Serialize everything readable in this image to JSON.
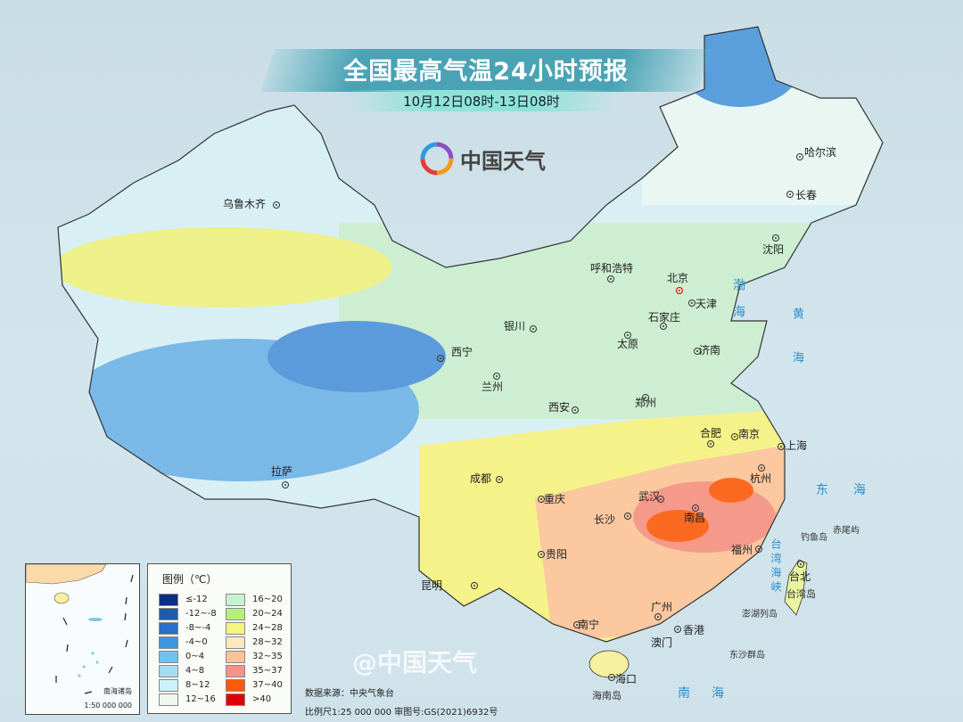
{
  "header": {
    "title": "全国最高气温24小时预报",
    "subtitle": "10月12日08时-13日08时",
    "logo_text": "中国天气",
    "logo_icon": "swirl-logo-icon"
  },
  "cities": [
    {
      "name": "乌鲁木齐"
    },
    {
      "name": "哈尔滨"
    },
    {
      "name": "长春"
    },
    {
      "name": "沈阳"
    },
    {
      "name": "呼和浩特"
    },
    {
      "name": "北京",
      "capital": true
    },
    {
      "name": "天津"
    },
    {
      "name": "石家庄"
    },
    {
      "name": "太原"
    },
    {
      "name": "济南"
    },
    {
      "name": "银川"
    },
    {
      "name": "西宁"
    },
    {
      "name": "兰州"
    },
    {
      "name": "西安"
    },
    {
      "name": "郑州"
    },
    {
      "name": "合肥"
    },
    {
      "name": "南京"
    },
    {
      "name": "上海"
    },
    {
      "name": "杭州"
    },
    {
      "name": "武汉"
    },
    {
      "name": "成都"
    },
    {
      "name": "重庆"
    },
    {
      "name": "长沙"
    },
    {
      "name": "南昌"
    },
    {
      "name": "拉萨"
    },
    {
      "name": "贵阳"
    },
    {
      "name": "福州"
    },
    {
      "name": "台北"
    },
    {
      "name": "昆明"
    },
    {
      "name": "南宁"
    },
    {
      "name": "广州"
    },
    {
      "name": "香港"
    },
    {
      "name": "澳门"
    },
    {
      "name": "海口"
    }
  ],
  "seas": {
    "bohai": "渤海",
    "huanghai": "黄海",
    "donghai": "东海",
    "taiwan_strait": "台湾海峡",
    "nanhai": "南海"
  },
  "islands": {
    "diaoyu": "钓鱼岛",
    "chiwei": "赤尾屿",
    "penghu": "澎湖列岛",
    "taiwan": "台湾岛",
    "dongsha": "东沙群岛",
    "hainan": "海南岛"
  },
  "legend": {
    "title": "图例（℃）",
    "items": [
      {
        "label": "≤-12",
        "color": "#0a2f80"
      },
      {
        "label": "-12~-8",
        "color": "#1f5ca8"
      },
      {
        "label": "-8~-4",
        "color": "#2a6fc9"
      },
      {
        "label": "-4~0",
        "color": "#3b95e0"
      },
      {
        "label": "0~4",
        "color": "#72c1f0"
      },
      {
        "label": "4~8",
        "color": "#a6dcf2"
      },
      {
        "label": "8~12",
        "color": "#cdf2fb"
      },
      {
        "label": "12~16",
        "color": "#eef8ee"
      },
      {
        "label": "16~20",
        "color": "#c8f3d2"
      },
      {
        "label": "20~24",
        "color": "#b7ef7e"
      },
      {
        "label": "24~28",
        "color": "#f6f57e"
      },
      {
        "label": "28~32",
        "color": "#fde9bb"
      },
      {
        "label": "32~35",
        "color": "#fbc39a"
      },
      {
        "label": "35~37",
        "color": "#f6928a"
      },
      {
        "label": "37~40",
        "color": "#fb5a08"
      },
      {
        "label": ">40",
        "color": "#e00000"
      }
    ]
  },
  "inset": {
    "label": "南海诸岛",
    "scale": "1:50 000 000"
  },
  "footer": {
    "source": "数据来源：中央气象台",
    "scale": "比例尺1:25 000 000   审图号:GS(2021)6932号",
    "watermark": "@中国天气"
  }
}
